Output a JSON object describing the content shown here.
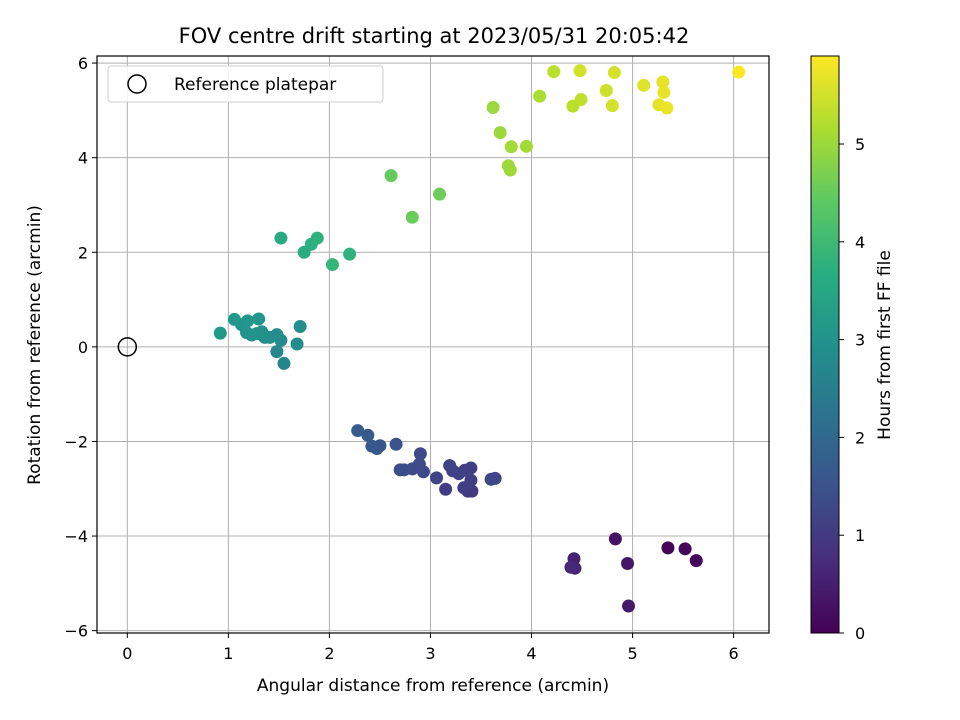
{
  "chart_data": {
    "type": "scatter",
    "title": "FOV centre drift starting at 2023/05/31 20:05:42",
    "xlabel": "Angular distance from reference (arcmin)",
    "ylabel": "Rotation from reference (arcmin)",
    "xlim": [
      -0.3,
      6.35
    ],
    "ylim": [
      -6.05,
      6.15
    ],
    "xticks": [
      0,
      1,
      2,
      3,
      4,
      5,
      6
    ],
    "yticks": [
      -6,
      -4,
      -2,
      0,
      2,
      4,
      6
    ],
    "grid": true,
    "legend": {
      "position": "upper-left",
      "entries": [
        {
          "label": "Reference platepar",
          "marker": "open-circle"
        }
      ]
    },
    "reference_point": {
      "x": 0,
      "y": 0
    },
    "colorbar": {
      "label": "Hours from first FF file",
      "colormap": "viridis",
      "range": [
        0,
        5.9
      ],
      "ticks": [
        0,
        1,
        2,
        3,
        4,
        5
      ]
    },
    "points": [
      {
        "x": 5.35,
        "y": -4.25,
        "h": 0.05
      },
      {
        "x": 5.52,
        "y": -4.27,
        "h": 0.08
      },
      {
        "x": 5.63,
        "y": -4.52,
        "h": 0.1
      },
      {
        "x": 4.83,
        "y": -4.06,
        "h": 0.3
      },
      {
        "x": 4.95,
        "y": -4.58,
        "h": 0.35
      },
      {
        "x": 4.96,
        "y": -5.48,
        "h": 0.4
      },
      {
        "x": 4.42,
        "y": -4.48,
        "h": 0.55
      },
      {
        "x": 4.43,
        "y": -4.68,
        "h": 0.6
      },
      {
        "x": 4.39,
        "y": -4.66,
        "h": 0.65
      },
      {
        "x": 3.37,
        "y": -3.05,
        "h": 1.0
      },
      {
        "x": 3.41,
        "y": -3.05,
        "h": 1.02
      },
      {
        "x": 3.33,
        "y": -2.98,
        "h": 1.04
      },
      {
        "x": 3.15,
        "y": -3.01,
        "h": 1.06
      },
      {
        "x": 3.4,
        "y": -2.82,
        "h": 1.08
      },
      {
        "x": 3.4,
        "y": -2.56,
        "h": 1.1
      },
      {
        "x": 3.34,
        "y": -2.61,
        "h": 1.12
      },
      {
        "x": 3.28,
        "y": -2.68,
        "h": 1.14
      },
      {
        "x": 3.22,
        "y": -2.62,
        "h": 1.16
      },
      {
        "x": 3.19,
        "y": -2.51,
        "h": 1.18
      },
      {
        "x": 3.06,
        "y": -2.77,
        "h": 1.2
      },
      {
        "x": 3.6,
        "y": -2.8,
        "h": 1.22
      },
      {
        "x": 3.64,
        "y": -2.78,
        "h": 1.24
      },
      {
        "x": 2.93,
        "y": -2.64,
        "h": 1.3
      },
      {
        "x": 2.89,
        "y": -2.48,
        "h": 1.32
      },
      {
        "x": 2.9,
        "y": -2.26,
        "h": 1.34
      },
      {
        "x": 2.82,
        "y": -2.58,
        "h": 1.36
      },
      {
        "x": 2.74,
        "y": -2.6,
        "h": 1.38
      },
      {
        "x": 2.7,
        "y": -2.6,
        "h": 1.4
      },
      {
        "x": 2.66,
        "y": -2.06,
        "h": 1.5
      },
      {
        "x": 2.5,
        "y": -2.09,
        "h": 1.55
      },
      {
        "x": 2.47,
        "y": -2.15,
        "h": 1.58
      },
      {
        "x": 2.42,
        "y": -2.1,
        "h": 1.62
      },
      {
        "x": 2.38,
        "y": -1.87,
        "h": 1.65
      },
      {
        "x": 2.28,
        "y": -1.77,
        "h": 1.7
      },
      {
        "x": 1.55,
        "y": -0.35,
        "h": 2.7
      },
      {
        "x": 1.48,
        "y": -0.1,
        "h": 2.75
      },
      {
        "x": 1.52,
        "y": 0.14,
        "h": 2.8
      },
      {
        "x": 1.48,
        "y": 0.26,
        "h": 2.85
      },
      {
        "x": 1.68,
        "y": 0.06,
        "h": 2.85
      },
      {
        "x": 1.71,
        "y": 0.43,
        "h": 2.9
      },
      {
        "x": 1.41,
        "y": 0.2,
        "h": 2.9
      },
      {
        "x": 1.36,
        "y": 0.2,
        "h": 2.95
      },
      {
        "x": 1.33,
        "y": 0.32,
        "h": 2.95
      },
      {
        "x": 1.28,
        "y": 0.28,
        "h": 3.0
      },
      {
        "x": 1.23,
        "y": 0.25,
        "h": 3.0
      },
      {
        "x": 1.18,
        "y": 0.3,
        "h": 3.05
      },
      {
        "x": 1.13,
        "y": 0.47,
        "h": 3.05
      },
      {
        "x": 1.19,
        "y": 0.55,
        "h": 3.1
      },
      {
        "x": 1.3,
        "y": 0.59,
        "h": 3.1
      },
      {
        "x": 1.06,
        "y": 0.58,
        "h": 3.15
      },
      {
        "x": 0.92,
        "y": 0.29,
        "h": 3.15
      },
      {
        "x": 1.52,
        "y": 2.3,
        "h": 3.6
      },
      {
        "x": 1.75,
        "y": 2.0,
        "h": 3.65
      },
      {
        "x": 1.82,
        "y": 2.17,
        "h": 3.7
      },
      {
        "x": 1.88,
        "y": 2.3,
        "h": 3.75
      },
      {
        "x": 2.2,
        "y": 1.96,
        "h": 3.8
      },
      {
        "x": 2.03,
        "y": 1.74,
        "h": 3.9
      },
      {
        "x": 2.61,
        "y": 3.62,
        "h": 4.5
      },
      {
        "x": 2.82,
        "y": 2.74,
        "h": 4.55
      },
      {
        "x": 3.09,
        "y": 3.23,
        "h": 4.6
      },
      {
        "x": 3.62,
        "y": 5.06,
        "h": 5.0
      },
      {
        "x": 3.69,
        "y": 4.53,
        "h": 5.0
      },
      {
        "x": 3.77,
        "y": 3.83,
        "h": 5.05
      },
      {
        "x": 3.79,
        "y": 3.74,
        "h": 5.05
      },
      {
        "x": 3.8,
        "y": 4.23,
        "h": 5.08
      },
      {
        "x": 3.95,
        "y": 4.24,
        "h": 5.1
      },
      {
        "x": 4.08,
        "y": 5.3,
        "h": 5.15
      },
      {
        "x": 4.22,
        "y": 5.82,
        "h": 5.3
      },
      {
        "x": 4.41,
        "y": 5.09,
        "h": 5.3
      },
      {
        "x": 4.49,
        "y": 5.23,
        "h": 5.35
      },
      {
        "x": 4.48,
        "y": 5.84,
        "h": 5.5
      },
      {
        "x": 4.74,
        "y": 5.42,
        "h": 5.45
      },
      {
        "x": 4.8,
        "y": 5.1,
        "h": 5.5
      },
      {
        "x": 4.82,
        "y": 5.8,
        "h": 5.55
      },
      {
        "x": 5.11,
        "y": 5.53,
        "h": 5.6
      },
      {
        "x": 5.26,
        "y": 5.12,
        "h": 5.65
      },
      {
        "x": 5.3,
        "y": 5.6,
        "h": 5.7
      },
      {
        "x": 5.31,
        "y": 5.38,
        "h": 5.7
      },
      {
        "x": 5.34,
        "y": 5.05,
        "h": 5.75
      },
      {
        "x": 6.05,
        "y": 5.81,
        "h": 5.9
      }
    ]
  }
}
